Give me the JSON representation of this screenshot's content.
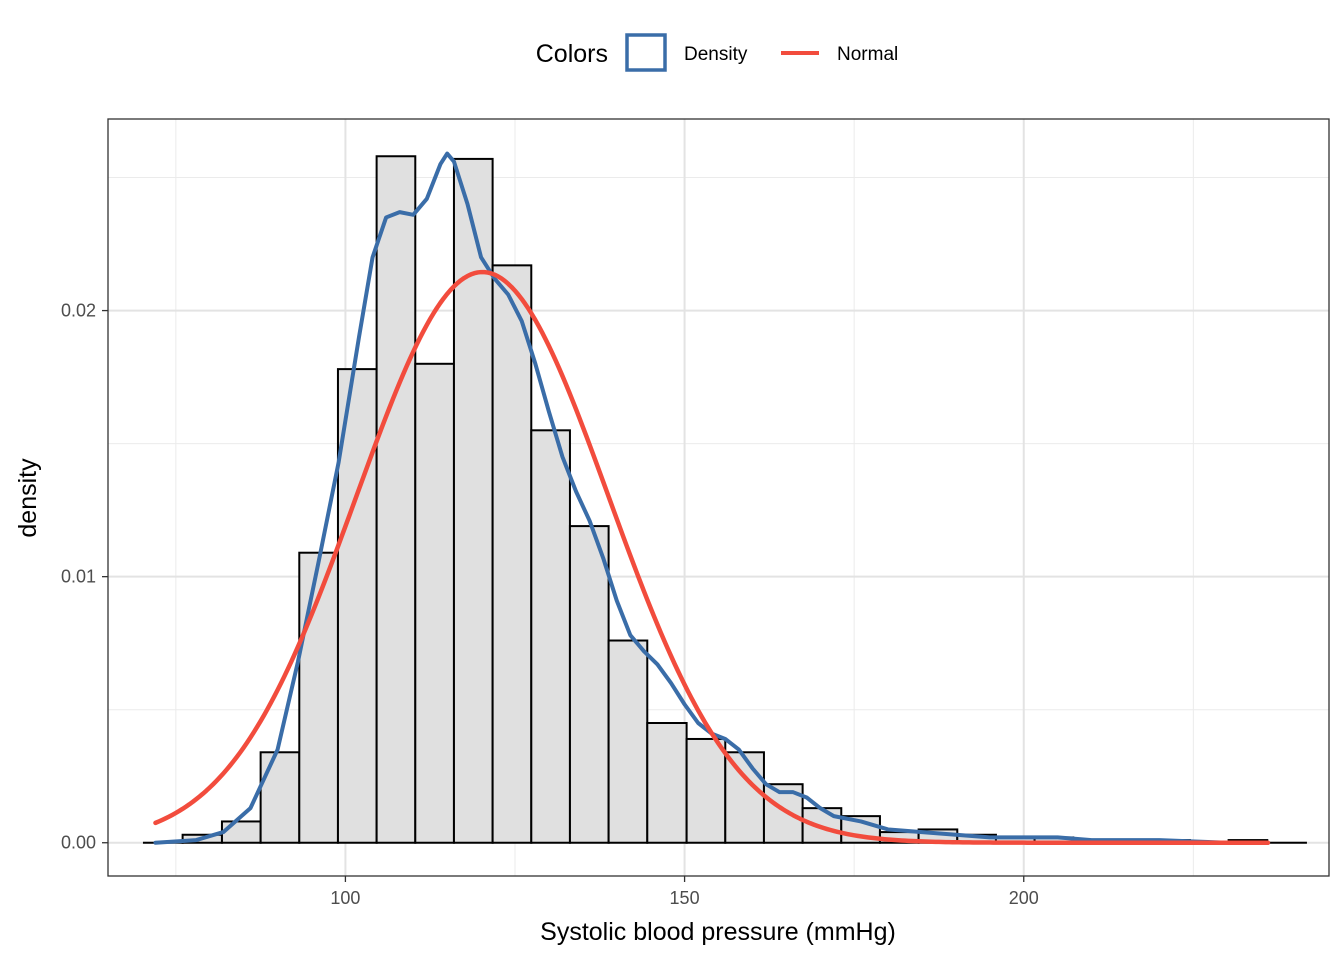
{
  "chart_data": {
    "type": "bar",
    "xlabel": "Systolic blood pressure (mmHg)",
    "ylabel": "density",
    "xlim": [
      65,
      245
    ],
    "ylim": [
      -0.00125,
      0.0272
    ],
    "x_ticks": [
      100,
      150,
      200
    ],
    "x_tick_labels": [
      "100",
      "150",
      "200"
    ],
    "y_ticks": [
      0.0,
      0.01,
      0.02
    ],
    "y_tick_labels": [
      "0.00",
      "0.01",
      "0.02"
    ],
    "grid": true,
    "legend": {
      "title": "Colors",
      "position": "top",
      "entries": [
        {
          "label": "Density",
          "color": "#3a6da8",
          "style": "box"
        },
        {
          "label": "Normal",
          "color": "#f24c3d",
          "style": "line"
        }
      ]
    },
    "histogram": {
      "fill": "#e0e0e0",
      "outline": "#000000",
      "bins": [
        {
          "x0": 70.3,
          "x1": 76.0,
          "y": 0.0
        },
        {
          "x0": 76.0,
          "x1": 81.8,
          "y": 0.0003
        },
        {
          "x0": 81.8,
          "x1": 87.5,
          "y": 0.0008
        },
        {
          "x0": 87.5,
          "x1": 93.2,
          "y": 0.0034
        },
        {
          "x0": 93.2,
          "x1": 98.9,
          "y": 0.0109
        },
        {
          "x0": 98.9,
          "x1": 104.6,
          "y": 0.0178
        },
        {
          "x0": 104.6,
          "x1": 110.3,
          "y": 0.0258
        },
        {
          "x0": 110.3,
          "x1": 116.0,
          "y": 0.018
        },
        {
          "x0": 116.0,
          "x1": 121.7,
          "y": 0.0257
        },
        {
          "x0": 121.7,
          "x1": 127.4,
          "y": 0.0217
        },
        {
          "x0": 127.4,
          "x1": 133.1,
          "y": 0.0155
        },
        {
          "x0": 133.1,
          "x1": 138.8,
          "y": 0.0119
        },
        {
          "x0": 138.8,
          "x1": 144.5,
          "y": 0.0076
        },
        {
          "x0": 144.5,
          "x1": 150.3,
          "y": 0.0045
        },
        {
          "x0": 150.3,
          "x1": 156.0,
          "y": 0.0039
        },
        {
          "x0": 156.0,
          "x1": 161.7,
          "y": 0.0034
        },
        {
          "x0": 161.7,
          "x1": 167.4,
          "y": 0.0022
        },
        {
          "x0": 167.4,
          "x1": 173.1,
          "y": 0.0013
        },
        {
          "x0": 173.1,
          "x1": 178.8,
          "y": 0.001
        },
        {
          "x0": 178.8,
          "x1": 184.5,
          "y": 0.0004
        },
        {
          "x0": 184.5,
          "x1": 190.2,
          "y": 0.0005
        },
        {
          "x0": 190.2,
          "x1": 195.9,
          "y": 0.0003
        },
        {
          "x0": 195.9,
          "x1": 201.6,
          "y": 0.0002
        },
        {
          "x0": 201.6,
          "x1": 207.3,
          "y": 0.0002
        },
        {
          "x0": 207.3,
          "x1": 213.0,
          "y": 0.0001
        },
        {
          "x0": 213.0,
          "x1": 218.8,
          "y": 0.0001
        },
        {
          "x0": 218.8,
          "x1": 224.5,
          "y": 0.0001
        },
        {
          "x0": 224.5,
          "x1": 230.2,
          "y": 0.0
        },
        {
          "x0": 230.2,
          "x1": 235.9,
          "y": 0.0001
        },
        {
          "x0": 235.9,
          "x1": 241.6,
          "y": 0.0
        }
      ]
    },
    "series": [
      {
        "name": "Density",
        "color": "#3a6da8",
        "points": [
          [
            72,
            0.0
          ],
          [
            78,
            0.0001
          ],
          [
            82,
            0.0004
          ],
          [
            86,
            0.0013
          ],
          [
            90,
            0.0035
          ],
          [
            93,
            0.0068
          ],
          [
            96,
            0.0105
          ],
          [
            99,
            0.0143
          ],
          [
            102,
            0.019
          ],
          [
            104,
            0.022
          ],
          [
            106,
            0.0235
          ],
          [
            108,
            0.0237
          ],
          [
            110,
            0.0236
          ],
          [
            112,
            0.0242
          ],
          [
            114,
            0.0255
          ],
          [
            115,
            0.0259
          ],
          [
            116,
            0.0256
          ],
          [
            118,
            0.024
          ],
          [
            120,
            0.022
          ],
          [
            122,
            0.0212
          ],
          [
            124,
            0.0206
          ],
          [
            126,
            0.0196
          ],
          [
            128,
            0.018
          ],
          [
            130,
            0.0162
          ],
          [
            132,
            0.0145
          ],
          [
            134,
            0.0132
          ],
          [
            136,
            0.0121
          ],
          [
            138,
            0.0107
          ],
          [
            140,
            0.0091
          ],
          [
            142,
            0.0078
          ],
          [
            144,
            0.0072
          ],
          [
            146,
            0.0067
          ],
          [
            148,
            0.006
          ],
          [
            150,
            0.0052
          ],
          [
            152,
            0.0045
          ],
          [
            154,
            0.0041
          ],
          [
            156,
            0.0039
          ],
          [
            158,
            0.0035
          ],
          [
            160,
            0.0028
          ],
          [
            162,
            0.0022
          ],
          [
            164,
            0.0019
          ],
          [
            166,
            0.0019
          ],
          [
            168,
            0.0017
          ],
          [
            170,
            0.0013
          ],
          [
            172,
            0.001
          ],
          [
            176,
            0.0008
          ],
          [
            180,
            0.0005
          ],
          [
            185,
            0.0004
          ],
          [
            190,
            0.0003
          ],
          [
            195,
            0.0002
          ],
          [
            200,
            0.0002
          ],
          [
            205,
            0.0002
          ],
          [
            210,
            0.0001
          ],
          [
            220,
            0.0001
          ],
          [
            230,
            0.0
          ],
          [
            236,
            0.0
          ]
        ]
      },
      {
        "name": "Normal",
        "color": "#f24c3d",
        "distribution": {
          "mean": 120.2,
          "sd": 18.6
        },
        "x_range": [
          72,
          236
        ]
      }
    ]
  }
}
